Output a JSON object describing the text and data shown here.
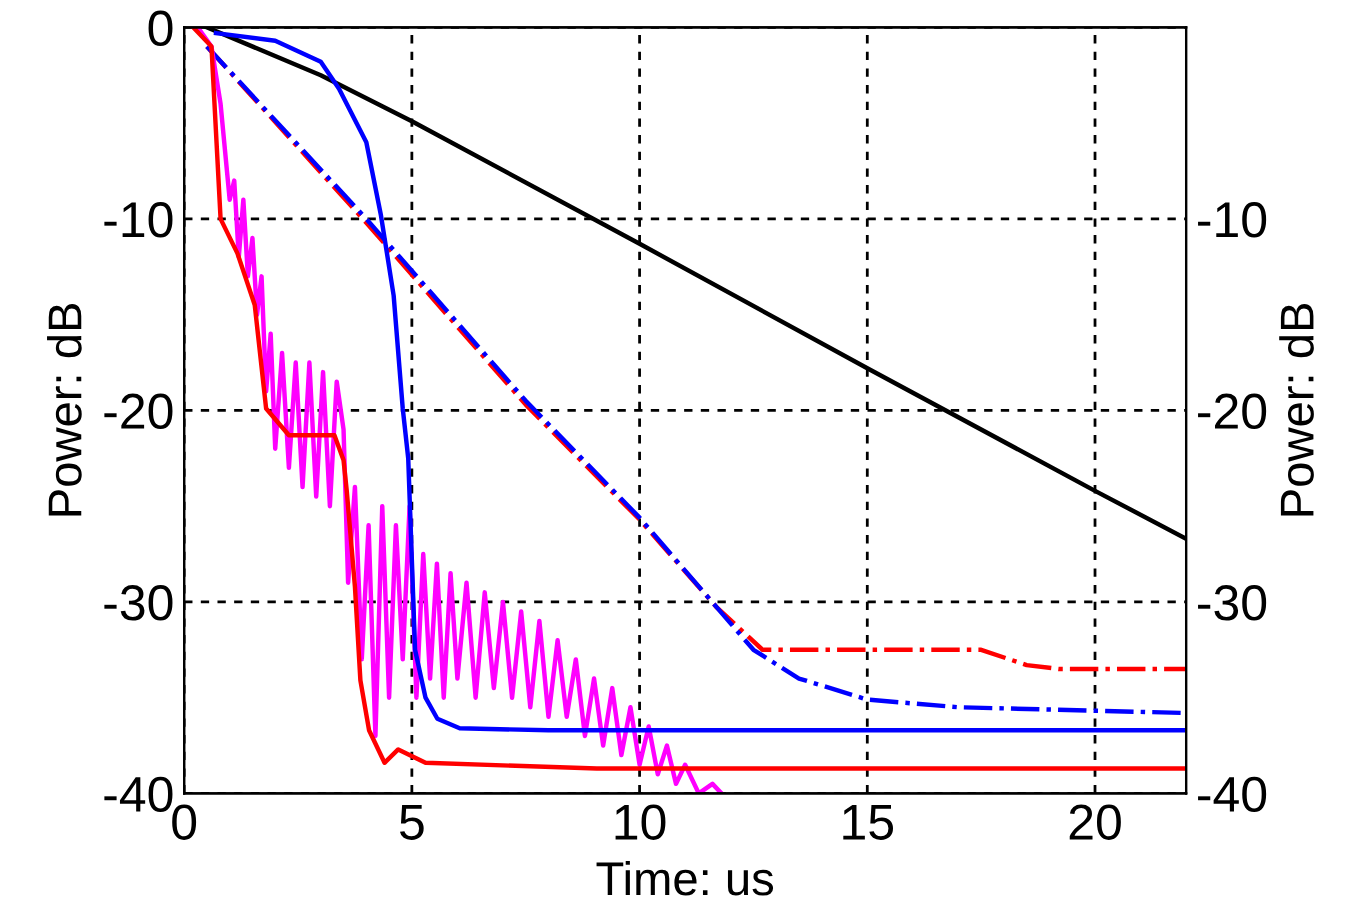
{
  "chart_data": {
    "type": "line",
    "xlabel": "Time: us",
    "ylabel": "Power: dB",
    "y2label": "Power: dB",
    "xlim": [
      0,
      22
    ],
    "xticks": [
      0,
      5,
      10,
      15,
      20
    ],
    "ylim": [
      -40,
      0
    ],
    "yticks": [
      -40,
      -30,
      -20,
      -10,
      0
    ],
    "y2lim": [
      -40,
      0
    ],
    "y2ticks": [
      -40,
      -30,
      -20,
      -10
    ],
    "grid": true,
    "line_style": "solid",
    "series": [
      {
        "color": "#000000",
        "x": [
          0.5,
          3,
          5,
          10,
          15,
          20,
          22
        ],
        "values": [
          0,
          -2.5,
          -4.9,
          -11.3,
          -17.8,
          -24.2,
          -26.7
        ]
      },
      {
        "color": "#ff0000",
        "line_style": "dashdot",
        "x": [
          0.5,
          4,
          7.5,
          10,
          11.7,
          12.7,
          17.5,
          18.5,
          19.2,
          22
        ],
        "values": [
          -1,
          -10.2,
          -19.7,
          -25.7,
          -30.3,
          -32.5,
          -32.5,
          -33.3,
          -33.5,
          -33.5
        ]
      },
      {
        "color": "#0000ff",
        "line_style": "dashdot",
        "x": [
          0.5,
          4,
          7.5,
          10,
          11.7,
          12.5,
          13.5,
          15,
          17,
          22
        ],
        "values": [
          -1,
          -10,
          -19.5,
          -25.6,
          -30.3,
          -32.5,
          -34,
          -35.1,
          -35.5,
          -35.8
        ]
      },
      {
        "color": "#ff00ff",
        "x": [
          0.3,
          0.6,
          0.8,
          1.0,
          1.1,
          1.2,
          1.3,
          1.4,
          1.5,
          1.6,
          1.7,
          1.8,
          1.9,
          2.0,
          2.15,
          2.3,
          2.45,
          2.6,
          2.75,
          2.9,
          3.05,
          3.2,
          3.35,
          3.5,
          3.6,
          3.75,
          3.9,
          4.05,
          4.2,
          4.35,
          4.5,
          4.65,
          4.8,
          4.95,
          5.1,
          5.25,
          5.4,
          5.55,
          5.7,
          5.85,
          6.0,
          6.2,
          6.4,
          6.6,
          6.8,
          7.0,
          7.2,
          7.4,
          7.6,
          7.8,
          8.0,
          8.2,
          8.4,
          8.6,
          8.8,
          9.0,
          9.2,
          9.4,
          9.6,
          9.8,
          10.0,
          10.2,
          10.4,
          10.6,
          10.8,
          11.0,
          11.3,
          11.6,
          11.8
        ],
        "values": [
          0,
          -1,
          -4,
          -9,
          -8,
          -12,
          -9,
          -13,
          -11,
          -15,
          -13,
          -19,
          -16,
          -22,
          -17,
          -23,
          -17.5,
          -24,
          -17.5,
          -24.5,
          -18,
          -25,
          -18.5,
          -21,
          -29,
          -24,
          -33,
          -26,
          -37,
          -25,
          -35,
          -26,
          -33,
          -25,
          -35,
          -27.5,
          -34,
          -28,
          -35,
          -28.5,
          -34,
          -29,
          -35,
          -29.5,
          -34.5,
          -30,
          -35,
          -30.5,
          -35.5,
          -31,
          -36,
          -32,
          -36,
          -33,
          -37,
          -34,
          -37.5,
          -34.5,
          -38,
          -35.5,
          -38.5,
          -36.5,
          -39,
          -37.5,
          -39.5,
          -38.5,
          -40,
          -39.5,
          -40
        ]
      },
      {
        "color": "#0000ff",
        "x": [
          0.7,
          2,
          3,
          3.4,
          4,
          4.32,
          4.6,
          4.8,
          4.92,
          5.07,
          5.3,
          5.56,
          6.05,
          8,
          22
        ],
        "values": [
          -0.3,
          -0.7,
          -1.8,
          -3.2,
          -6,
          -9.8,
          -14,
          -19.9,
          -22.5,
          -32.5,
          -35,
          -36.1,
          -36.6,
          -36.7,
          -36.7
        ]
      },
      {
        "color": "#ff0000",
        "x": [
          0.2,
          0.6,
          0.8,
          1.17,
          1.55,
          1.8,
          2.3,
          3.3,
          3.5,
          3.57,
          3.75,
          3.87,
          4.06,
          4.4,
          4.7,
          5.3,
          9.06,
          22
        ],
        "values": [
          0,
          -1,
          -10,
          -11.8,
          -14.5,
          -19.9,
          -21.3,
          -21.3,
          -22.6,
          -24.2,
          -29.2,
          -34.1,
          -36.7,
          -38.4,
          -37.7,
          -38.4,
          -38.7,
          -38.7
        ]
      }
    ]
  }
}
